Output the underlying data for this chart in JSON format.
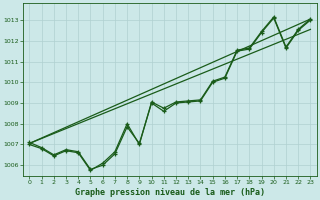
{
  "title": "Graphe pression niveau de la mer (hPa)",
  "bg_color": "#cce8e8",
  "plot_bg_color": "#cce8e8",
  "grid_color": "#b0d0d0",
  "line_color": "#1a5c1a",
  "marker_color": "#1a5c1a",
  "xlim": [
    -0.5,
    23.5
  ],
  "ylim": [
    1005.5,
    1013.8
  ],
  "yticks": [
    1006,
    1007,
    1008,
    1009,
    1010,
    1011,
    1012,
    1013
  ],
  "xticks": [
    0,
    1,
    2,
    3,
    4,
    5,
    6,
    7,
    8,
    9,
    10,
    11,
    12,
    13,
    14,
    15,
    16,
    17,
    18,
    19,
    20,
    21,
    22,
    23
  ],
  "series1": [
    1007.1,
    1006.85,
    1006.5,
    1006.75,
    1006.65,
    1005.8,
    1006.0,
    1006.55,
    1007.85,
    1007.05,
    1009.0,
    1008.6,
    1009.0,
    1009.05,
    1009.1,
    1010.0,
    1010.2,
    1011.5,
    1011.6,
    1012.4,
    1013.1,
    1011.65,
    1012.5,
    1013.0
  ],
  "series2": [
    1007.0,
    1006.8,
    1006.45,
    1006.7,
    1006.6,
    1005.75,
    1006.1,
    1006.65,
    1008.0,
    1007.0,
    1009.05,
    1008.75,
    1009.05,
    1009.1,
    1009.15,
    1010.05,
    1010.25,
    1011.55,
    1011.65,
    1012.45,
    1013.15,
    1011.7,
    1012.55,
    1013.05
  ],
  "reg1": [
    1007.05,
    1013.05
  ],
  "reg2": [
    1007.05,
    1012.55
  ],
  "xlabel_fontsize": 6.0,
  "tick_fontsize": 4.5
}
